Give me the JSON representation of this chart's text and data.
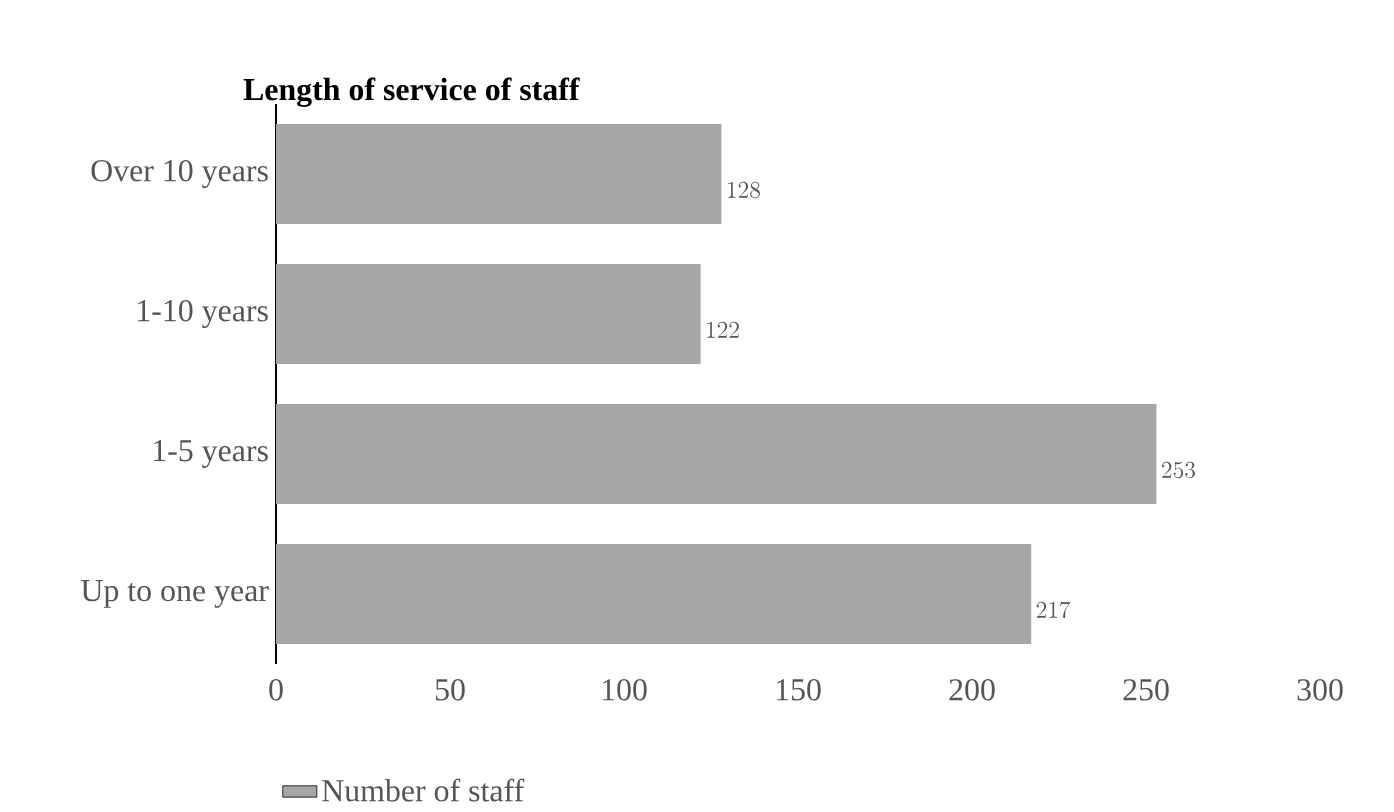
{
  "chart_data": {
    "type": "bar",
    "orientation": "horizontal",
    "title": "Length of service of staff",
    "categories": [
      "Over 10 years",
      "1-10 years",
      "1-5 years",
      "Up to one year"
    ],
    "series": [
      {
        "name": "Number of staff",
        "color": "#a7a7a9",
        "values": [
          128,
          122,
          253,
          217
        ]
      }
    ],
    "xlim": [
      0,
      300
    ],
    "xticks": [
      0,
      50,
      100,
      150,
      200,
      250,
      300
    ],
    "data_labels": true,
    "legend": "bottom",
    "grid": false
  }
}
